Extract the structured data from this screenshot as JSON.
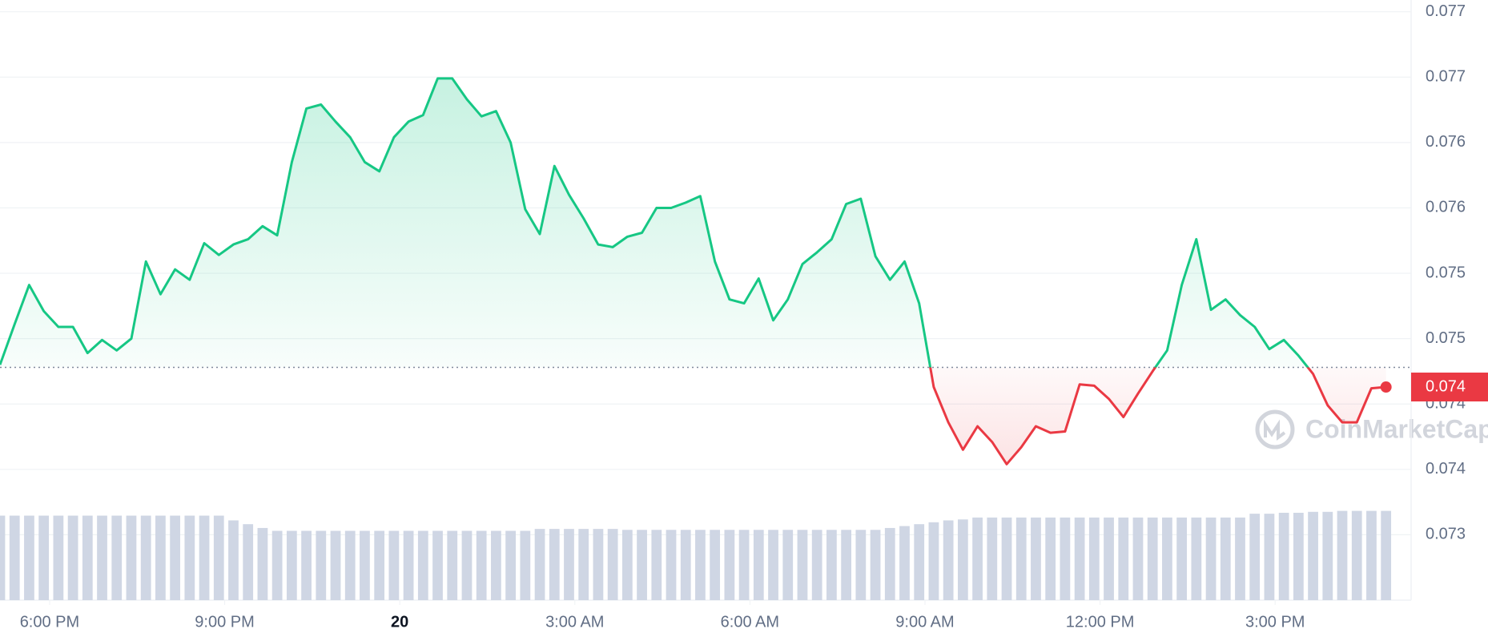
{
  "chart_data": {
    "type": "area-line",
    "x": [
      -6.85,
      -6.6,
      -6.35,
      -6.1,
      -5.85,
      -5.6,
      -5.35,
      -5.1,
      -4.85,
      -4.6,
      -4.35,
      -4.1,
      -3.85,
      -3.6,
      -3.35,
      -3.1,
      -2.85,
      -2.6,
      -2.35,
      -2.1,
      -1.85,
      -1.6,
      -1.35,
      -1.1,
      -0.85,
      -0.6,
      -0.35,
      -0.1,
      0.15,
      0.4,
      0.65,
      0.9,
      1.15,
      1.4,
      1.65,
      1.9,
      2.15,
      2.4,
      2.65,
      2.9,
      3.15,
      3.4,
      3.65,
      3.9,
      4.15,
      4.4,
      4.65,
      4.9,
      5.15,
      5.4,
      5.65,
      5.9,
      6.15,
      6.4,
      6.65,
      6.9,
      7.15,
      7.4,
      7.65,
      7.9,
      8.15,
      8.4,
      8.65,
      8.9,
      9.15,
      9.4,
      9.65,
      9.9,
      10.15,
      10.4,
      10.65,
      10.9,
      11.15,
      11.4,
      11.65,
      11.9,
      12.15,
      12.4,
      12.65,
      12.9,
      13.15,
      13.4,
      13.65,
      13.9,
      14.15,
      14.4,
      14.65,
      14.9,
      15.15,
      15.4,
      15.65,
      15.9,
      16.15,
      16.4,
      16.65,
      16.9
    ],
    "series": [
      {
        "values": [
          0.0743,
          0.07461,
          0.07491,
          0.07471,
          0.07459,
          0.07459,
          0.07439,
          0.07449,
          0.07441,
          0.0745,
          0.07509,
          0.07484,
          0.07503,
          0.07495,
          0.07523,
          0.07514,
          0.07522,
          0.07526,
          0.07536,
          0.07529,
          0.07585,
          0.07626,
          0.07629,
          0.07616,
          0.07604,
          0.07585,
          0.07578,
          0.07604,
          0.07616,
          0.07621,
          0.07649,
          0.07649,
          0.07633,
          0.0762,
          0.07624,
          0.076,
          0.07549,
          0.0753,
          0.07582,
          0.0756,
          0.07542,
          0.07522,
          0.0752,
          0.07528,
          0.07531,
          0.0755,
          0.0755,
          0.07554,
          0.07559,
          0.07509,
          0.0748,
          0.07477,
          0.07496,
          0.07464,
          0.0748,
          0.07507,
          0.07516,
          0.07526,
          0.07553,
          0.07557,
          0.07513,
          0.07495,
          0.07509,
          0.07477,
          0.07413,
          0.07386,
          0.07365,
          0.07383,
          0.07371,
          0.07354,
          0.07367,
          0.07383,
          0.07378,
          0.07379,
          0.07415,
          0.07414,
          0.07404,
          0.0739,
          0.07408,
          0.07425,
          0.07441,
          0.07491,
          0.07526,
          0.07472,
          0.0748,
          0.07468,
          0.07459,
          0.07442,
          0.07449,
          0.07437,
          0.07423,
          0.07399,
          0.07386,
          0.07386,
          0.07412,
          0.07413
        ]
      }
    ],
    "volume": {
      "color": "#cfd6e4",
      "values": [
        89,
        89,
        89,
        89,
        89,
        89,
        89,
        89,
        89,
        89,
        89,
        89,
        89,
        89,
        89,
        89,
        84,
        80,
        76,
        73,
        73,
        73,
        73,
        73,
        73,
        73,
        73,
        73,
        73,
        73,
        73,
        73,
        73,
        73,
        73,
        73,
        73,
        75,
        75,
        75,
        75,
        75,
        75,
        74,
        74,
        74,
        74,
        74,
        74,
        74,
        74,
        74,
        74,
        74,
        74,
        74,
        74,
        74,
        74,
        74,
        74,
        76,
        78,
        80,
        82,
        84,
        85,
        87,
        87,
        87,
        87,
        87,
        87,
        87,
        87,
        87,
        87,
        87,
        87,
        87,
        87,
        87,
        87,
        87,
        87,
        87,
        91,
        91,
        92,
        92,
        93,
        93,
        94,
        94,
        94,
        94
      ]
    },
    "up_color": "#16c784",
    "down_color": "#ea3943",
    "baseline": 0.07428,
    "current_price": {
      "value": 0.07413,
      "label": "0.074"
    },
    "watermark": "CoinMarketCap",
    "xlim": [
      -6.85,
      17.33
    ],
    "xticks": [
      {
        "value": -6,
        "label": "6:00 PM"
      },
      {
        "value": -3,
        "label": "9:00 PM"
      },
      {
        "value": 0,
        "label": "20"
      },
      {
        "value": 3,
        "label": "3:00 AM"
      },
      {
        "value": 6,
        "label": "6:00 AM"
      },
      {
        "value": 9,
        "label": "9:00 AM"
      },
      {
        "value": 12,
        "label": "12:00 PM"
      },
      {
        "value": 15,
        "label": "3:00 PM"
      }
    ],
    "ylim": [
      0.0725,
      0.07709
    ],
    "yticks": [
      {
        "value": 0.077,
        "label": "0.077"
      },
      {
        "value": 0.0765,
        "label": "0.077"
      },
      {
        "value": 0.076,
        "label": "0.076"
      },
      {
        "value": 0.0755,
        "label": "0.076"
      },
      {
        "value": 0.075,
        "label": "0.075"
      },
      {
        "value": 0.0745,
        "label": "0.075"
      },
      {
        "value": 0.074,
        "label": "0.074"
      },
      {
        "value": 0.0735,
        "label": "0.074"
      },
      {
        "value": 0.073,
        "label": "0.073"
      }
    ],
    "grid": true
  }
}
